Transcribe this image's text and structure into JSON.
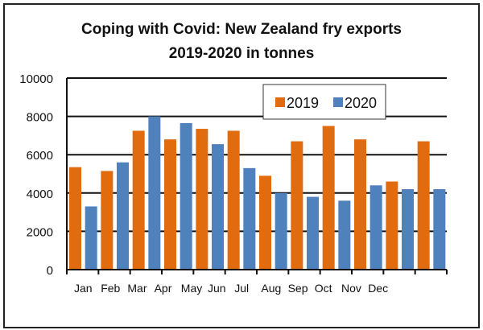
{
  "chart_data": {
    "type": "bar",
    "title": "Coping with Covid: New Zealand fry exports",
    "subtitle": "2019-2020 in tonnes",
    "xlabel": "",
    "ylabel": "",
    "ylim": [
      0,
      10000
    ],
    "yticks": [
      0,
      2000,
      4000,
      6000,
      8000,
      10000
    ],
    "categories": [
      "Jan",
      "Feb",
      "Mar",
      "Apr",
      "May",
      "Jun",
      "Jul",
      "Aug",
      "Sep",
      "Oct",
      "Nov",
      "Dec"
    ],
    "series": [
      {
        "name": "2019",
        "color": "#E06C0F",
        "values": [
          5350,
          5150,
          7250,
          6800,
          7350,
          7250,
          4900,
          6700,
          7500,
          6800,
          4600,
          6700
        ]
      },
      {
        "name": "2020",
        "color": "#4F81BD",
        "values": [
          3300,
          5600,
          8000,
          7650,
          6550,
          5300,
          4000,
          3800,
          3600,
          4400,
          4200,
          4200
        ]
      }
    ],
    "grid": true,
    "legend": "top-right"
  }
}
